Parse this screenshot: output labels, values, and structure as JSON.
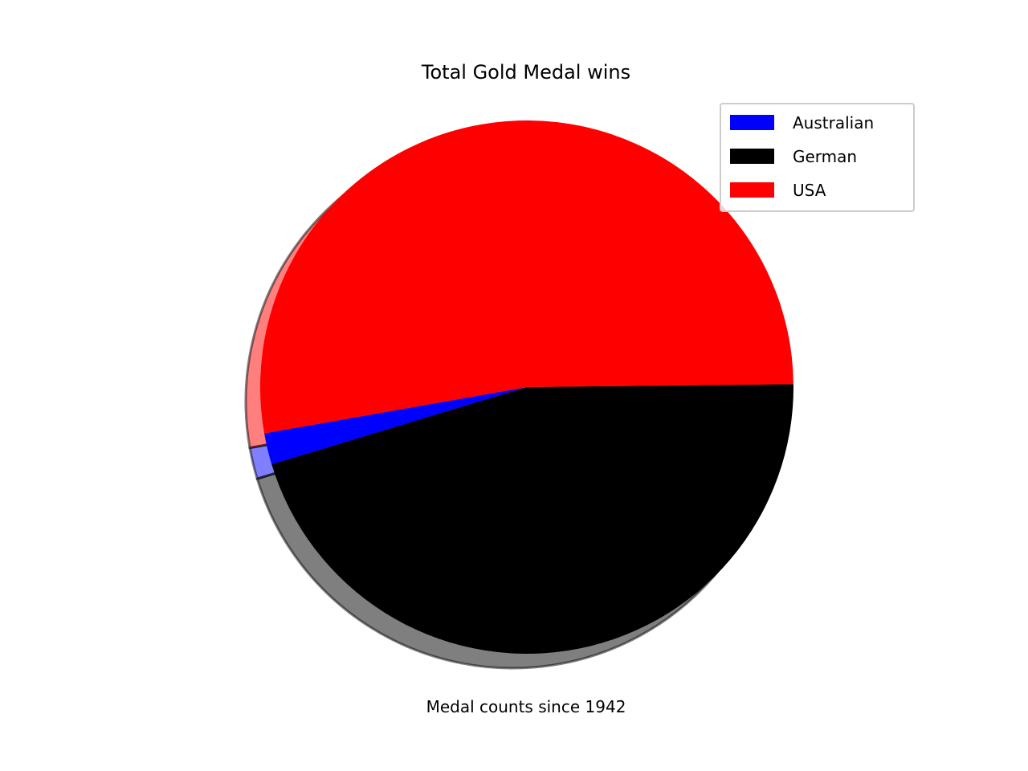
{
  "chart_data": {
    "type": "pie",
    "title": "Total Gold Medal wins",
    "xlabel": "Medal counts since 1942",
    "ylabel": "",
    "labels": [
      "Australian",
      "German",
      "USA"
    ],
    "values": [
      1.9,
      45.5,
      52.6
    ],
    "unit": "percent of total",
    "colors": [
      "#0000ff",
      "#000000",
      "#ff0000"
    ],
    "shadow": true,
    "legend": "top-right",
    "grid": false
  }
}
